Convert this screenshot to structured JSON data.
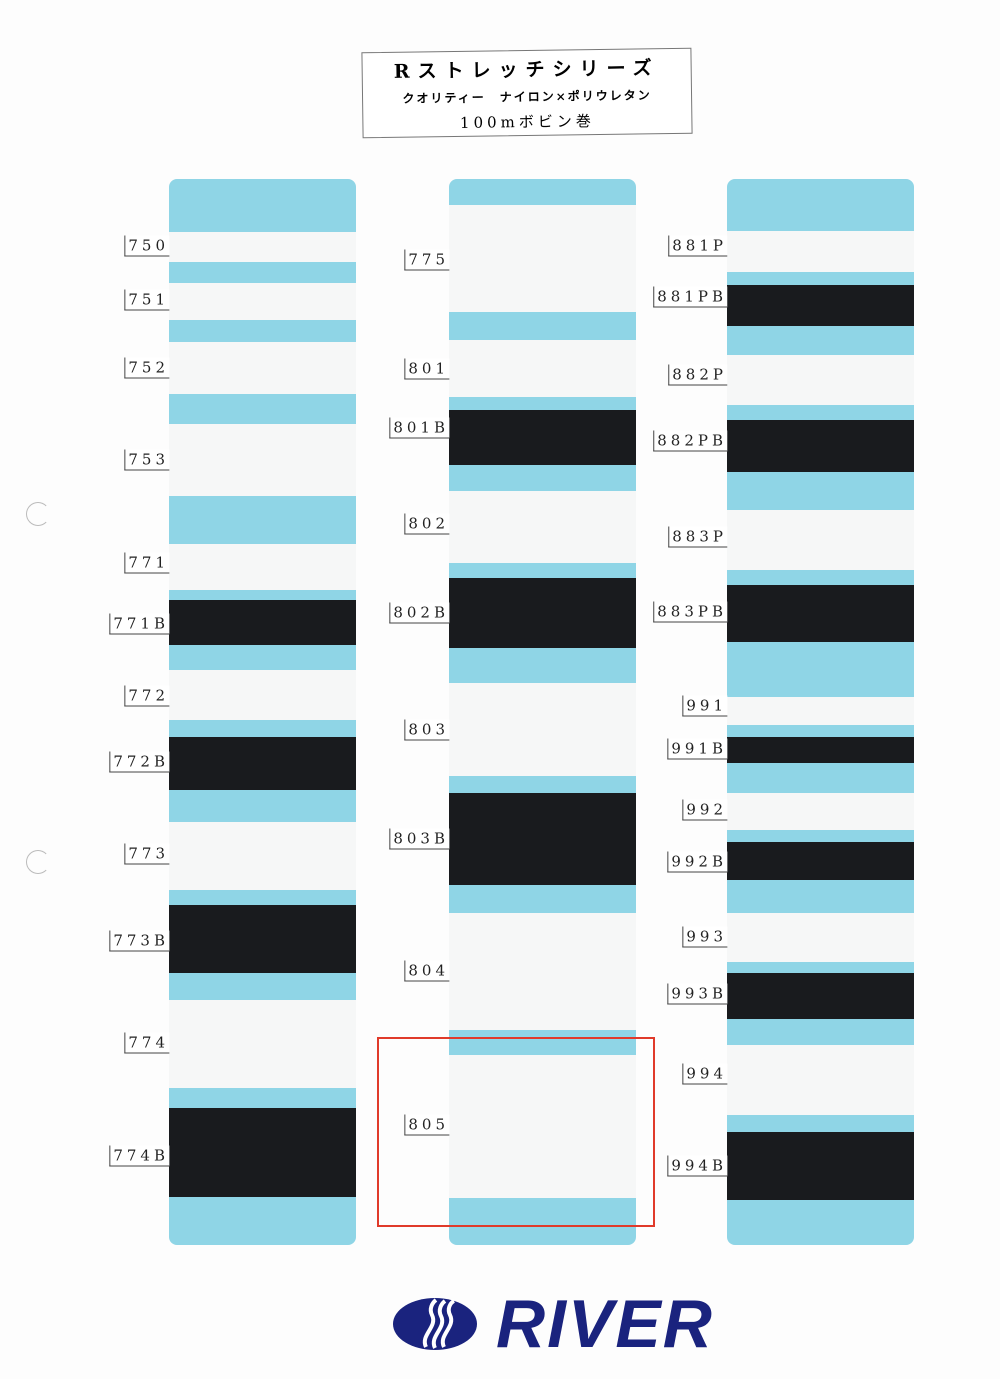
{
  "title": {
    "line1": "Rストレッチシリーズ",
    "line2": "クオリティー　ナイロン×ポリウレタン",
    "line3": "100mボビン巻"
  },
  "colors": {
    "card": "#8fd5e6",
    "white_tape": "#f6f7f7",
    "black_tape": "#191b1e",
    "highlight": "#e03a2a",
    "brand": "#1a237e"
  },
  "columns": [
    {
      "samples": [
        {
          "code": "750",
          "color": "white"
        },
        {
          "code": "751",
          "color": "white"
        },
        {
          "code": "752",
          "color": "white"
        },
        {
          "code": "753",
          "color": "white"
        },
        {
          "code": "771",
          "color": "white"
        },
        {
          "code": "771B",
          "color": "black"
        },
        {
          "code": "772",
          "color": "white"
        },
        {
          "code": "772B",
          "color": "black"
        },
        {
          "code": "773",
          "color": "white"
        },
        {
          "code": "773B",
          "color": "black"
        },
        {
          "code": "774",
          "color": "white"
        },
        {
          "code": "774B",
          "color": "black"
        }
      ]
    },
    {
      "samples": [
        {
          "code": "775",
          "color": "white"
        },
        {
          "code": "801",
          "color": "white"
        },
        {
          "code": "801B",
          "color": "black"
        },
        {
          "code": "802",
          "color": "white"
        },
        {
          "code": "802B",
          "color": "black"
        },
        {
          "code": "803",
          "color": "white"
        },
        {
          "code": "803B",
          "color": "black"
        },
        {
          "code": "804",
          "color": "white"
        },
        {
          "code": "805",
          "color": "white",
          "highlighted": true
        }
      ]
    },
    {
      "samples": [
        {
          "code": "881P",
          "color": "white"
        },
        {
          "code": "881PB",
          "color": "black"
        },
        {
          "code": "882P",
          "color": "white"
        },
        {
          "code": "882PB",
          "color": "black"
        },
        {
          "code": "883P",
          "color": "white"
        },
        {
          "code": "883PB",
          "color": "black"
        },
        {
          "code": "991",
          "color": "white"
        },
        {
          "code": "991B",
          "color": "black"
        },
        {
          "code": "992",
          "color": "white"
        },
        {
          "code": "992B",
          "color": "black"
        },
        {
          "code": "993",
          "color": "white"
        },
        {
          "code": "993B",
          "color": "black"
        },
        {
          "code": "994",
          "color": "white"
        },
        {
          "code": "994B",
          "color": "black"
        }
      ]
    }
  ],
  "logo": {
    "text": "RIVER"
  }
}
